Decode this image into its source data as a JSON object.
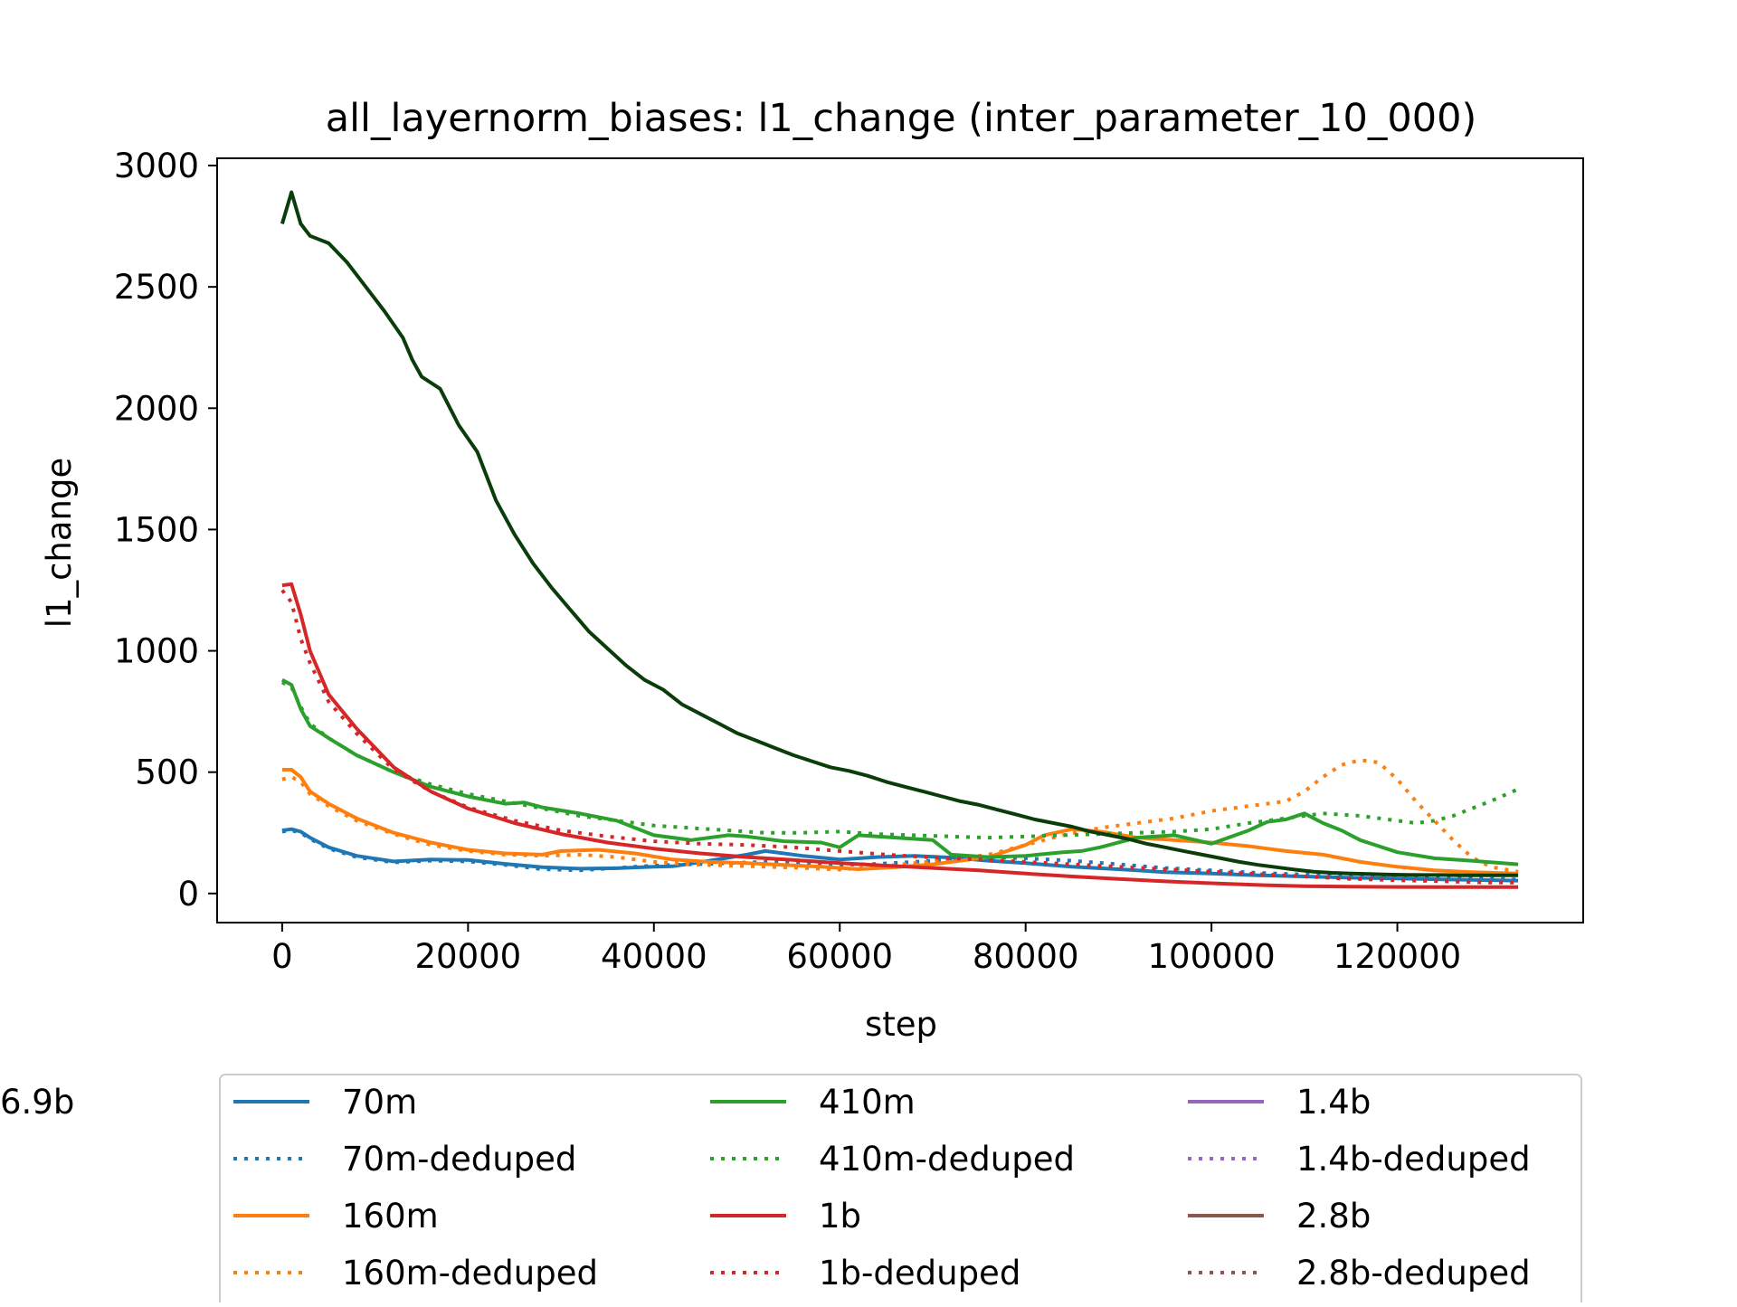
{
  "chart_data": {
    "type": "line",
    "title": "all_layernorm_biases: l1_change (inter_parameter_10_000)",
    "xlabel": "step",
    "ylabel": "l1_change",
    "xlim": [
      -7000,
      140000
    ],
    "ylim": [
      -120,
      3030
    ],
    "xticks": [
      0,
      20000,
      40000,
      60000,
      80000,
      100000,
      120000
    ],
    "xtick_labels": [
      "0",
      "20000",
      "40000",
      "60000",
      "80000",
      "100000",
      "120000"
    ],
    "yticks": [
      0,
      500,
      1000,
      1500,
      2000,
      2500,
      3000
    ],
    "ytick_labels": [
      "0",
      "500",
      "1000",
      "1500",
      "2000",
      "2500",
      "3000"
    ],
    "grid": false,
    "legend_placement": "below plot",
    "legend_columns": 3,
    "series": [
      {
        "name": "70m",
        "color": "#1f77b4",
        "dash": "solid",
        "x": [
          0,
          1000,
          2000,
          3000,
          5000,
          8000,
          12000,
          16000,
          20000,
          24000,
          28000,
          32000,
          36000,
          40000,
          42000,
          46000,
          50000,
          52000,
          56000,
          60000,
          64000,
          68000,
          72000,
          76000,
          80000,
          85000,
          90000,
          95000,
          100000,
          105000,
          110000,
          115000,
          120000,
          125000,
          130000,
          133000
        ],
        "y": [
          260,
          265,
          255,
          230,
          190,
          155,
          132,
          140,
          138,
          122,
          108,
          102,
          104,
          110,
          112,
          135,
          160,
          175,
          155,
          140,
          150,
          155,
          148,
          135,
          125,
          110,
          100,
          88,
          82,
          75,
          70,
          65,
          62,
          58,
          55,
          53
        ]
      },
      {
        "name": "70m-deduped",
        "color": "#1f77b4",
        "dash": "dotted",
        "x": [
          0,
          1000,
          2000,
          3000,
          5000,
          8000,
          12000,
          16000,
          20000,
          24000,
          28000,
          32000,
          36000,
          40000,
          44000,
          48000,
          52000,
          56000,
          60000,
          64000,
          68000,
          72000,
          76000,
          80000,
          85000,
          90000,
          95000,
          100000,
          105000,
          110000,
          115000,
          120000,
          125000,
          130000,
          133000
        ],
        "y": [
          255,
          260,
          250,
          225,
          185,
          150,
          128,
          135,
          132,
          118,
          100,
          95,
          105,
          115,
          120,
          125,
          130,
          125,
          118,
          122,
          130,
          140,
          150,
          145,
          135,
          120,
          105,
          95,
          85,
          78,
          72,
          68,
          63,
          60,
          58
        ]
      },
      {
        "name": "160m",
        "color": "#ff7f0e",
        "dash": "solid",
        "x": [
          0,
          1000,
          2000,
          3000,
          5000,
          8000,
          12000,
          16000,
          20000,
          24000,
          28000,
          30000,
          34000,
          38000,
          42000,
          46000,
          50000,
          54000,
          58000,
          62000,
          66000,
          70000,
          72000,
          76000,
          80000,
          82000,
          85000,
          88000,
          92000,
          96000,
          100000,
          104000,
          108000,
          112000,
          116000,
          120000,
          124000,
          128000,
          133000
        ],
        "y": [
          510,
          510,
          480,
          420,
          370,
          310,
          250,
          210,
          180,
          165,
          160,
          175,
          180,
          165,
          140,
          130,
          125,
          118,
          110,
          100,
          108,
          120,
          130,
          150,
          200,
          240,
          265,
          255,
          230,
          220,
          210,
          195,
          175,
          160,
          130,
          110,
          95,
          88,
          82
        ]
      },
      {
        "name": "160m-deduped",
        "color": "#ff7f0e",
        "dash": "dotted",
        "x": [
          0,
          1000,
          2000,
          3000,
          5000,
          8000,
          12000,
          16000,
          20000,
          24000,
          28000,
          32000,
          36000,
          40000,
          44000,
          48000,
          52000,
          56000,
          60000,
          64000,
          68000,
          72000,
          76000,
          80000,
          84000,
          88000,
          92000,
          96000,
          100000,
          104000,
          108000,
          110000,
          112000,
          114000,
          116000,
          118000,
          120000,
          122000,
          124000,
          126000,
          128000,
          130000,
          133000
        ],
        "y": [
          470,
          480,
          460,
          410,
          360,
          300,
          245,
          200,
          175,
          160,
          155,
          160,
          150,
          130,
          120,
          115,
          110,
          105,
          98,
          110,
          125,
          140,
          160,
          200,
          240,
          270,
          290,
          310,
          340,
          360,
          380,
          420,
          480,
          530,
          550,
          540,
          470,
          380,
          300,
          220,
          150,
          110,
          90
        ]
      },
      {
        "name": "410m",
        "color": "#2ca02c",
        "dash": "solid",
        "x": [
          0,
          1000,
          2000,
          3000,
          5000,
          8000,
          12000,
          16000,
          20000,
          24000,
          26000,
          28000,
          32000,
          36000,
          40000,
          44000,
          48000,
          50000,
          54000,
          58000,
          60000,
          62000,
          66000,
          70000,
          72000,
          76000,
          80000,
          84000,
          86000,
          88000,
          92000,
          96000,
          100000,
          104000,
          106000,
          108000,
          110000,
          112000,
          114000,
          116000,
          120000,
          124000,
          128000,
          133000
        ],
        "y": [
          880,
          860,
          760,
          690,
          640,
          570,
          500,
          440,
          400,
          370,
          375,
          355,
          330,
          300,
          240,
          220,
          240,
          235,
          215,
          210,
          190,
          240,
          230,
          220,
          160,
          150,
          155,
          170,
          175,
          190,
          230,
          240,
          205,
          260,
          295,
          305,
          330,
          290,
          260,
          220,
          170,
          145,
          135,
          120
        ]
      },
      {
        "name": "410m-deduped",
        "color": "#2ca02c",
        "dash": "dotted",
        "x": [
          0,
          1000,
          2000,
          3000,
          5000,
          8000,
          12000,
          16000,
          20000,
          24000,
          28000,
          32000,
          36000,
          40000,
          44000,
          48000,
          52000,
          56000,
          60000,
          64000,
          68000,
          72000,
          76000,
          80000,
          84000,
          88000,
          92000,
          96000,
          100000,
          104000,
          108000,
          112000,
          116000,
          120000,
          122000,
          124000,
          126000,
          128000,
          130000,
          133000
        ],
        "y": [
          870,
          850,
          770,
          700,
          640,
          570,
          500,
          450,
          410,
          380,
          350,
          320,
          300,
          280,
          270,
          260,
          250,
          250,
          255,
          245,
          240,
          235,
          230,
          235,
          240,
          245,
          250,
          255,
          265,
          290,
          310,
          330,
          320,
          300,
          290,
          300,
          320,
          350,
          380,
          430
        ]
      },
      {
        "name": "1b",
        "color": "#d62728",
        "dash": "solid",
        "x": [
          0,
          1000,
          2000,
          3000,
          5000,
          8000,
          12000,
          16000,
          20000,
          25000,
          30000,
          35000,
          40000,
          45000,
          50000,
          55000,
          60000,
          65000,
          70000,
          75000,
          80000,
          85000,
          90000,
          95000,
          100000,
          105000,
          110000,
          115000,
          120000,
          125000,
          130000,
          133000
        ],
        "y": [
          1270,
          1275,
          1150,
          1000,
          820,
          680,
          520,
          420,
          350,
          290,
          245,
          210,
          185,
          165,
          150,
          138,
          125,
          115,
          105,
          95,
          82,
          70,
          60,
          50,
          42,
          35,
          30,
          28,
          27,
          26,
          26,
          26
        ]
      },
      {
        "name": "1b-deduped",
        "color": "#d62728",
        "dash": "dotted",
        "x": [
          0,
          1000,
          2000,
          3000,
          5000,
          8000,
          12000,
          16000,
          20000,
          25000,
          30000,
          35000,
          40000,
          45000,
          50000,
          55000,
          60000,
          65000,
          70000,
          75000,
          80000,
          85000,
          90000,
          95000,
          100000,
          105000,
          110000,
          115000,
          120000,
          125000,
          130000,
          133000
        ],
        "y": [
          1250,
          1200,
          1050,
          950,
          790,
          660,
          510,
          420,
          355,
          300,
          260,
          235,
          215,
          205,
          200,
          190,
          175,
          160,
          148,
          140,
          130,
          120,
          110,
          100,
          90,
          80,
          70,
          60,
          55,
          50,
          45,
          45
        ]
      },
      {
        "name": "1.4b",
        "color": "#9467bd",
        "dash": "solid",
        "x": [],
        "y": []
      },
      {
        "name": "1.4b-deduped",
        "color": "#9467bd",
        "dash": "dotted",
        "x": [],
        "y": []
      },
      {
        "name": "2.8b",
        "color": "#8c564b",
        "dash": "solid",
        "x": [],
        "y": []
      },
      {
        "name": "2.8b-deduped",
        "color": "#8c564b",
        "dash": "dotted",
        "x": [],
        "y": []
      },
      {
        "name": "6.9b",
        "color": "#0b3d0b",
        "dash": "solid",
        "x": [
          0,
          1000,
          2000,
          3000,
          5000,
          7000,
          9000,
          11000,
          13000,
          14000,
          15000,
          17000,
          19000,
          21000,
          22000,
          23000,
          25000,
          27000,
          29000,
          31000,
          33000,
          35000,
          37000,
          39000,
          41000,
          43000,
          45000,
          47000,
          49000,
          51000,
          53000,
          55000,
          57000,
          59000,
          61000,
          63000,
          65000,
          67000,
          69000,
          71000,
          73000,
          75000,
          77000,
          79000,
          81000,
          83000,
          85000,
          87000,
          89000,
          91000,
          93000,
          95000,
          97000,
          99000,
          101000,
          103000,
          105000,
          107000,
          109000,
          111000,
          113000,
          115000,
          117000,
          119000,
          121000,
          123000,
          125000,
          127000,
          129000,
          131000,
          133000
        ],
        "y": [
          2760,
          2890,
          2760,
          2710,
          2680,
          2600,
          2500,
          2400,
          2290,
          2200,
          2130,
          2080,
          1930,
          1820,
          1720,
          1620,
          1480,
          1360,
          1260,
          1170,
          1080,
          1010,
          940,
          880,
          840,
          780,
          740,
          700,
          660,
          630,
          600,
          570,
          545,
          520,
          505,
          485,
          460,
          440,
          420,
          400,
          380,
          365,
          345,
          325,
          305,
          290,
          275,
          255,
          240,
          225,
          205,
          190,
          175,
          160,
          145,
          130,
          118,
          108,
          98,
          90,
          85,
          82,
          80,
          78,
          77,
          76,
          76,
          75,
          75,
          75,
          75
        ]
      }
    ]
  }
}
